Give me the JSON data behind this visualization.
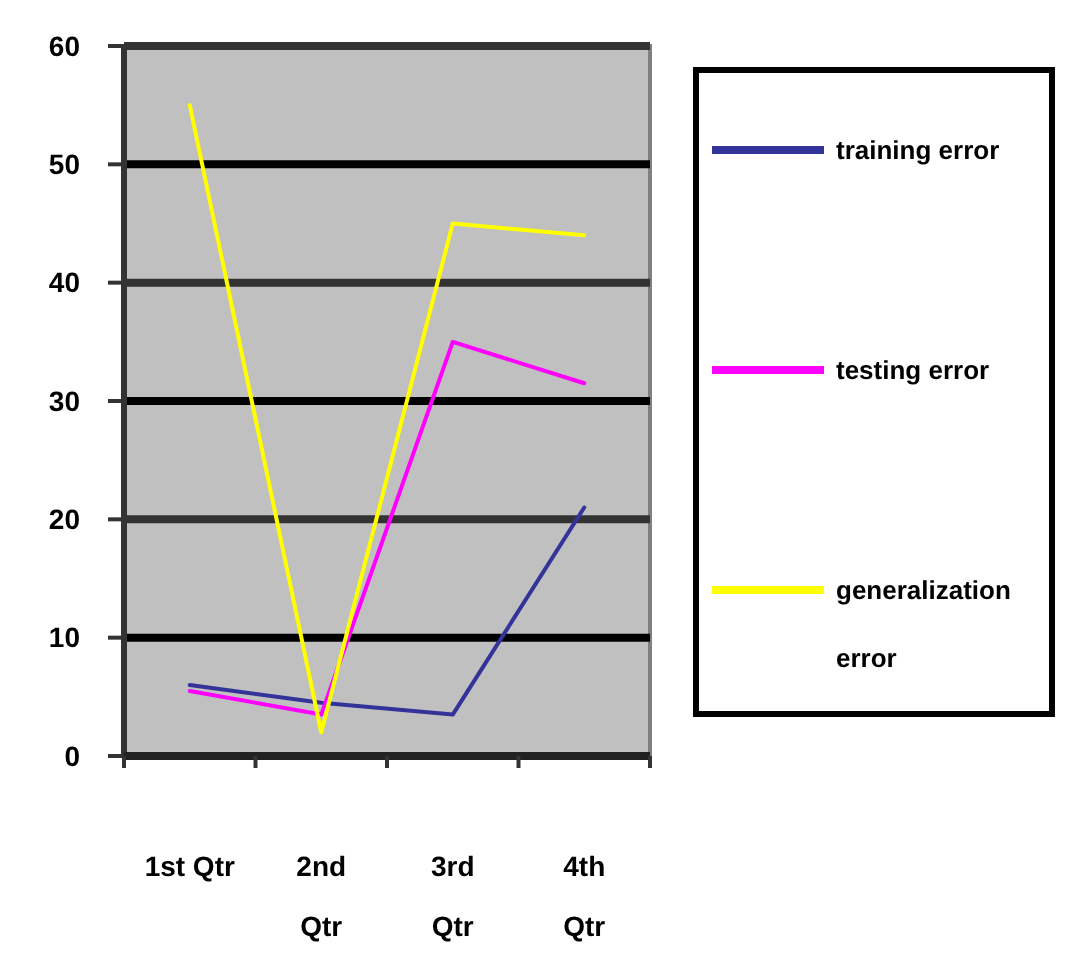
{
  "chart_data": {
    "type": "line",
    "categories": [
      "1st Qtr",
      "2nd Qtr",
      "3rd Qtr",
      "4th Qtr"
    ],
    "series": [
      {
        "name": "training error",
        "color": "#333399",
        "values": [
          6,
          4.5,
          3.5,
          21
        ]
      },
      {
        "name": "testing error",
        "color": "#ff00ff",
        "values": [
          5.5,
          3.5,
          35,
          31.5
        ]
      },
      {
        "name": "generalization error",
        "color": "#ffff00",
        "values": [
          55,
          2,
          45,
          44
        ]
      }
    ],
    "ylim": [
      0,
      60
    ],
    "yticks": [
      0,
      10,
      20,
      30,
      40,
      50,
      60
    ],
    "grid": "y",
    "legend": "right",
    "marker": "none",
    "line_style": "solid"
  }
}
